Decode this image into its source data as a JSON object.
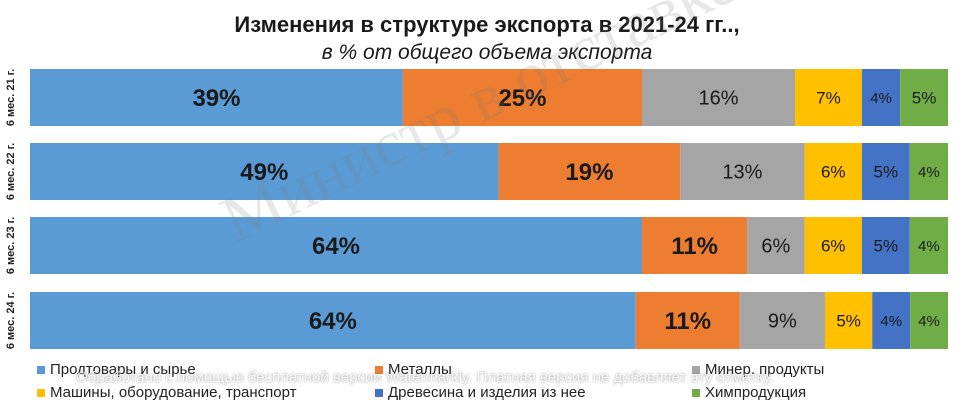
{
  "chart_data": {
    "type": "bar",
    "orientation": "horizontal",
    "stacked": true,
    "title": "Изменения в структуре экспорта в 2021-24 гг..,",
    "subtitle": "в % от общего объема экспорта",
    "categories": [
      "6 мес. 21 г.",
      "6 мес. 22 г.",
      "6 мес. 23 г.",
      "6 мес. 24 г."
    ],
    "series": [
      {
        "name": "Продтовары и сырье",
        "color": "#5B9BD5",
        "values": [
          39,
          49,
          64,
          64
        ]
      },
      {
        "name": "Металлы",
        "color": "#ED7D31",
        "values": [
          25,
          19,
          11,
          11
        ]
      },
      {
        "name": "Минер. продукты",
        "color": "#A5A5A5",
        "values": [
          16,
          13,
          6,
          9
        ]
      },
      {
        "name": "Машины, оборудование, транспорт",
        "color": "#FFC000",
        "values": [
          7,
          6,
          6,
          5
        ]
      },
      {
        "name": "Древесина и изделия из нее",
        "color": "#4472C4",
        "values": [
          4,
          5,
          5,
          4
        ]
      },
      {
        "name": "Химпродукция",
        "color": "#70AD47",
        "values": [
          5,
          4,
          4,
          4
        ]
      }
    ],
    "value_suffix": "%",
    "legend_position": "bottom"
  },
  "watermark_text": "Министр в отставке",
  "banner_text": "Обработано с помощью бесплатной версии Watermarkly. Платная версия не добавляет эту отметку."
}
